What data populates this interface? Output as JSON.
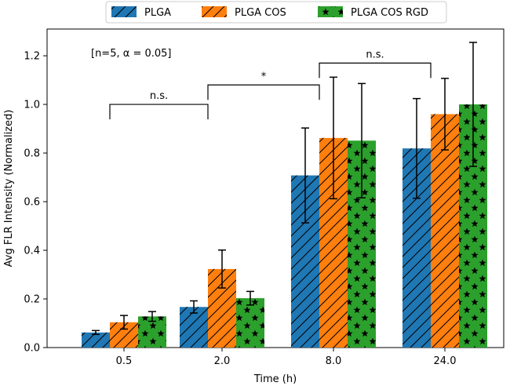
{
  "chart_data": {
    "type": "bar",
    "title": "",
    "xlabel": "Time (h)",
    "ylabel": "Avg FLR Intensity (Normalized)",
    "categories": [
      "0.5",
      "2.0",
      "8.0",
      "24.0"
    ],
    "ylim": [
      0,
      1.31
    ],
    "yticks": [
      0.0,
      0.2,
      0.4,
      0.6,
      0.8,
      1.0,
      1.2
    ],
    "ytick_labels": [
      "0.0",
      "0.2",
      "0.4",
      "0.6",
      "0.8",
      "1.0",
      "1.2"
    ],
    "series": [
      {
        "name": "PLGA",
        "color": "#1f77b4",
        "hatch": "diagonal",
        "values": [
          0.062,
          0.167,
          0.708,
          0.819
        ],
        "errors": [
          0.008,
          0.025,
          0.195,
          0.205
        ]
      },
      {
        "name": "PLGA COS",
        "color": "#ff7f0e",
        "hatch": "diagonal",
        "values": [
          0.104,
          0.323,
          0.862,
          0.96
        ],
        "errors": [
          0.028,
          0.078,
          0.25,
          0.147
        ]
      },
      {
        "name": "PLGA COS RGD",
        "color": "#2ca02c",
        "hatch": "stars",
        "values": [
          0.128,
          0.203,
          0.851,
          1.0
        ],
        "errors": [
          0.02,
          0.028,
          0.235,
          0.255
        ]
      }
    ],
    "annotation_text": "[n=5, α = 0.05]",
    "significance": [
      {
        "label": "n.s.",
        "from_category": 0,
        "to_category": 1,
        "level": 1.0
      },
      {
        "label": "*",
        "from_category": 1,
        "to_category": 2,
        "level": 1.08
      },
      {
        "label": "n.s.",
        "from_category": 2,
        "to_category": 3,
        "level": 1.17
      }
    ],
    "legend_position": "top-center"
  }
}
